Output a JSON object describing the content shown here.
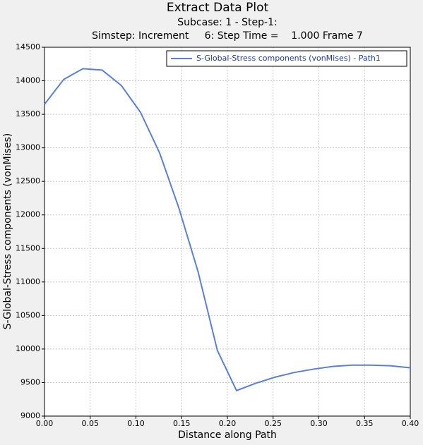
{
  "chart_data": {
    "type": "line",
    "title": "Extract Data Plot",
    "subtitle": [
      "Subcase: 1 - Step-1:",
      "Simstep: Increment     6: Step Time =    1.000 Frame 7"
    ],
    "x_label": "Distance along Path",
    "y_label": "S-Global-Stress components (vonMises)",
    "x": [
      0,
      0.021,
      0.042,
      0.063,
      0.084,
      0.105,
      0.126,
      0.147,
      0.168,
      0.189,
      0.21,
      0.231,
      0.252,
      0.273,
      0.294,
      0.315,
      0.336,
      0.357,
      0.378,
      0.4
    ],
    "series": [
      {
        "name": "S-Global-Stress components (vonMises) - Path1",
        "color": "#5b7fd6",
        "values": [
          13650,
          14020,
          14180,
          14160,
          13930,
          13530,
          12920,
          12100,
          11150,
          9980,
          9380,
          9490,
          9580,
          9650,
          9700,
          9740,
          9760,
          9760,
          9750,
          9720
        ]
      }
    ],
    "xlim": [
      0,
      0.4
    ],
    "xticks": [
      {
        "value": 0,
        "label": "0.00"
      },
      {
        "value": 0.05,
        "label": "0.05"
      },
      {
        "value": 0.1,
        "label": "0.10"
      },
      {
        "value": 0.15,
        "label": "0.15"
      },
      {
        "value": 0.2,
        "label": "0.20"
      },
      {
        "value": 0.25,
        "label": "0.25"
      },
      {
        "value": 0.3,
        "label": "0.30"
      },
      {
        "value": 0.35,
        "label": "0.35"
      },
      {
        "value": 0.4,
        "label": "0.40"
      }
    ],
    "ylim": [
      9000,
      14500
    ],
    "yticks": [
      9000,
      9500,
      10000,
      10500,
      11000,
      11500,
      12000,
      12500,
      13000,
      13500,
      14000,
      14500
    ],
    "grid": true,
    "legend": "top-right"
  }
}
